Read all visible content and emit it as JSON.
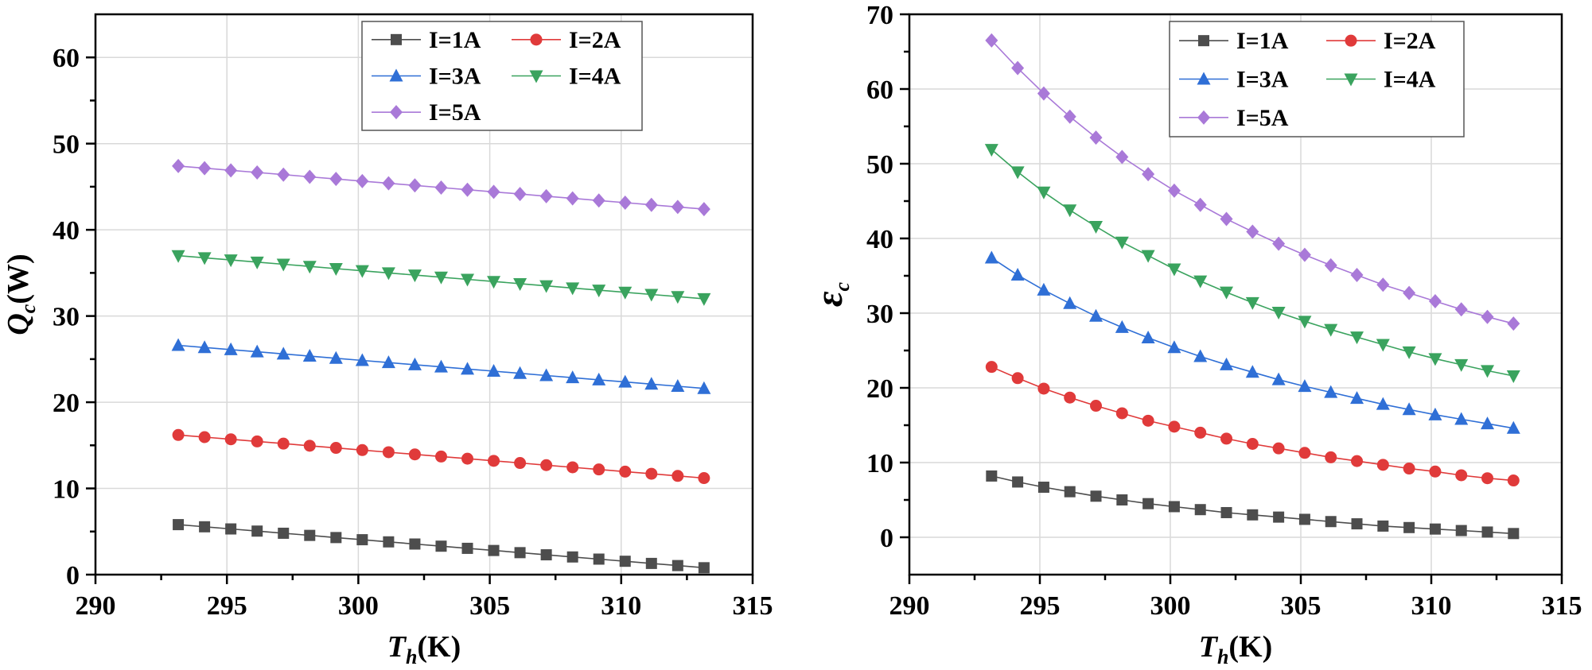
{
  "chart_data": [
    {
      "type": "line",
      "xlabel": {
        "symbol": "T",
        "subscript": "h",
        "unit": "(K)"
      },
      "ylabel": {
        "symbol": "Q",
        "subscript": "c",
        "unit": "(W)"
      },
      "xlim": [
        290,
        315
      ],
      "ylim": [
        0,
        65
      ],
      "xticks": [
        290,
        295,
        300,
        305,
        310,
        315
      ],
      "yticks": [
        0,
        10,
        20,
        30,
        40,
        50,
        60
      ],
      "grid": true,
      "legend": {
        "position": "top-right",
        "columns": 2
      },
      "x": [
        293.15,
        294.15,
        295.15,
        296.15,
        297.15,
        298.15,
        299.15,
        300.15,
        301.15,
        302.15,
        303.15,
        304.15,
        305.15,
        306.15,
        307.15,
        308.15,
        309.15,
        310.15,
        311.15,
        312.15,
        313.15
      ],
      "series": [
        {
          "name": "I=1A",
          "color": "#4d4d4d",
          "marker": "square",
          "values": [
            5.8,
            5.55,
            5.3,
            5.05,
            4.8,
            4.55,
            4.3,
            4.05,
            3.8,
            3.55,
            3.3,
            3.05,
            2.8,
            2.55,
            2.3,
            2.05,
            1.8,
            1.55,
            1.3,
            1.05,
            0.8
          ]
        },
        {
          "name": "I=2A",
          "color": "#e03a3a",
          "marker": "circle",
          "values": [
            16.2,
            15.95,
            15.7,
            15.45,
            15.2,
            14.95,
            14.7,
            14.45,
            14.2,
            13.95,
            13.7,
            13.45,
            13.2,
            12.95,
            12.7,
            12.45,
            12.2,
            11.95,
            11.7,
            11.45,
            11.2
          ]
        },
        {
          "name": "I=3A",
          "color": "#2f6fd6",
          "marker": "triangle-up",
          "values": [
            26.6,
            26.35,
            26.1,
            25.85,
            25.6,
            25.35,
            25.1,
            24.85,
            24.6,
            24.35,
            24.1,
            23.85,
            23.6,
            23.35,
            23.1,
            22.85,
            22.6,
            22.35,
            22.1,
            21.85,
            21.6
          ]
        },
        {
          "name": "I=4A",
          "color": "#3aa35e",
          "marker": "triangle-down",
          "values": [
            37.0,
            36.75,
            36.5,
            36.25,
            36.0,
            35.75,
            35.5,
            35.25,
            35.0,
            34.75,
            34.5,
            34.25,
            34.0,
            33.75,
            33.5,
            33.25,
            33.0,
            32.75,
            32.5,
            32.25,
            32.0
          ]
        },
        {
          "name": "I=5A",
          "color": "#a979d8",
          "marker": "diamond",
          "values": [
            47.4,
            47.15,
            46.9,
            46.65,
            46.4,
            46.15,
            45.9,
            45.65,
            45.4,
            45.15,
            44.9,
            44.65,
            44.4,
            44.15,
            43.9,
            43.65,
            43.4,
            43.15,
            42.9,
            42.65,
            42.4
          ]
        }
      ]
    },
    {
      "type": "line",
      "xlabel": {
        "symbol": "T",
        "subscript": "h",
        "unit": "(K)"
      },
      "ylabel": {
        "symbol": "ε",
        "subscript": "c",
        "unit": ""
      },
      "xlim": [
        290,
        315
      ],
      "ylim": [
        -5,
        70
      ],
      "xticks": [
        290,
        295,
        300,
        305,
        310,
        315
      ],
      "yticks": [
        0,
        10,
        20,
        30,
        40,
        50,
        60,
        70
      ],
      "grid": true,
      "legend": {
        "position": "top-right",
        "columns": 2
      },
      "x": [
        293.15,
        294.15,
        295.15,
        296.15,
        297.15,
        298.15,
        299.15,
        300.15,
        301.15,
        302.15,
        303.15,
        304.15,
        305.15,
        306.15,
        307.15,
        308.15,
        309.15,
        310.15,
        311.15,
        312.15,
        313.15
      ],
      "series": [
        {
          "name": "I=1A",
          "color": "#4d4d4d",
          "marker": "square",
          "values": [
            8.2,
            7.4,
            6.7,
            6.1,
            5.5,
            5.0,
            4.5,
            4.1,
            3.7,
            3.3,
            3.0,
            2.7,
            2.4,
            2.1,
            1.8,
            1.5,
            1.3,
            1.1,
            0.9,
            0.7,
            0.5
          ]
        },
        {
          "name": "I=2A",
          "color": "#e03a3a",
          "marker": "circle",
          "values": [
            22.8,
            21.3,
            19.9,
            18.7,
            17.6,
            16.6,
            15.6,
            14.8,
            14.0,
            13.2,
            12.5,
            11.9,
            11.3,
            10.7,
            10.2,
            9.7,
            9.2,
            8.8,
            8.3,
            7.9,
            7.6
          ]
        },
        {
          "name": "I=3A",
          "color": "#2f6fd6",
          "marker": "triangle-up",
          "values": [
            37.4,
            35.1,
            33.1,
            31.3,
            29.6,
            28.1,
            26.7,
            25.4,
            24.2,
            23.1,
            22.1,
            21.1,
            20.2,
            19.4,
            18.6,
            17.8,
            17.1,
            16.4,
            15.8,
            15.2,
            14.6
          ]
        },
        {
          "name": "I=4A",
          "color": "#3aa35e",
          "marker": "triangle-down",
          "values": [
            51.9,
            48.9,
            46.2,
            43.8,
            41.6,
            39.5,
            37.7,
            35.9,
            34.3,
            32.8,
            31.4,
            30.1,
            28.9,
            27.8,
            26.8,
            25.8,
            24.8,
            23.9,
            23.1,
            22.3,
            21.6
          ]
        },
        {
          "name": "I=5A",
          "color": "#a979d8",
          "marker": "diamond",
          "values": [
            66.5,
            62.8,
            59.4,
            56.3,
            53.5,
            50.9,
            48.6,
            46.4,
            44.5,
            42.6,
            40.9,
            39.3,
            37.8,
            36.4,
            35.1,
            33.8,
            32.7,
            31.6,
            30.5,
            29.5,
            28.6
          ]
        }
      ]
    }
  ]
}
